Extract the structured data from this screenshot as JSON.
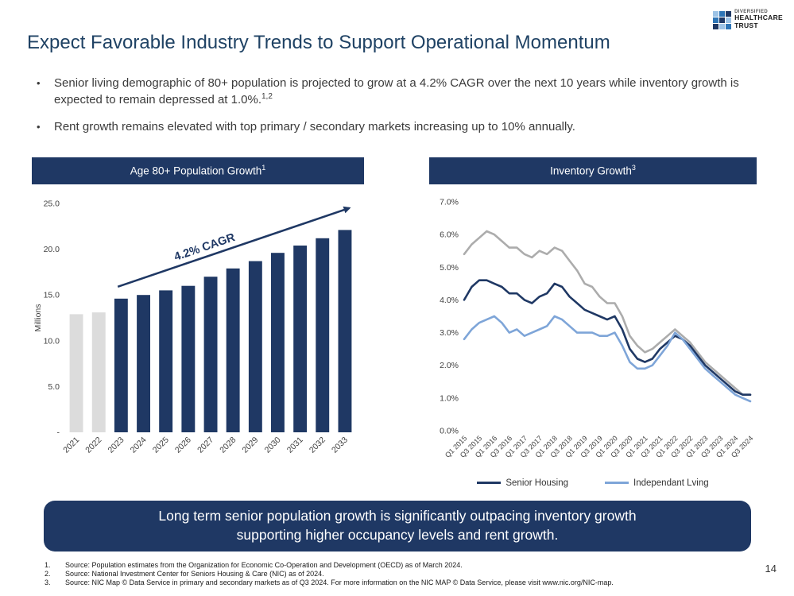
{
  "logo": {
    "line1": "DIVERSIFIED",
    "line2": "HEALTHCARE",
    "line3": "TRUST"
  },
  "title": "Expect Favorable Industry Trends to Support Operational Momentum",
  "bullets": [
    {
      "text": "Senior living demographic of 80+ population is projected to grow at a 4.2% CAGR over the next 10 years while inventory growth is expected to remain depressed at 1.0%.",
      "sup": "1,2"
    },
    {
      "text": "Rent growth remains elevated with top primary / secondary markets increasing up to 10% annually.",
      "sup": ""
    }
  ],
  "charts": {
    "population": {
      "header": "Age 80+ Population Growth",
      "header_sup": "1"
    },
    "inventory": {
      "header": "Inventory Growth",
      "header_sup": "3"
    }
  },
  "chart_data": [
    {
      "type": "bar",
      "title": "Age 80+ Population Growth",
      "title_sup": "1",
      "ylabel": "Millions",
      "ylim": [
        0,
        25
      ],
      "ytick_values": [
        0,
        5,
        10,
        15,
        20,
        25
      ],
      "ytick_labels": [
        "-",
        "5.0",
        "10.0",
        "15.0",
        "20.0",
        "25.0"
      ],
      "categories": [
        "2021",
        "2022",
        "2023",
        "2024",
        "2025",
        "2026",
        "2027",
        "2028",
        "2029",
        "2030",
        "2031",
        "2032",
        "2033"
      ],
      "values": [
        12.9,
        13.1,
        14.6,
        15.0,
        15.5,
        16.0,
        17.0,
        17.9,
        18.7,
        19.6,
        20.4,
        21.2,
        22.1
      ],
      "muted_count": 2,
      "bar_color": "#1F3864",
      "muted_color": "#DCDCDC",
      "annotation": {
        "text": "4.2% CAGR",
        "from_category": "2023",
        "to_category": "2033"
      }
    },
    {
      "type": "line",
      "title": "Inventory Growth",
      "title_sup": "3",
      "ylim": [
        0,
        7
      ],
      "ytick_values": [
        0,
        1,
        2,
        3,
        4,
        5,
        6,
        7
      ],
      "ytick_labels": [
        "0.0%",
        "1.0%",
        "2.0%",
        "3.0%",
        "4.0%",
        "5.0%",
        "6.0%",
        "7.0%"
      ],
      "x_labels": [
        "Q1 2015",
        "Q3 2015",
        "Q1 2016",
        "Q3 2016",
        "Q1 2017",
        "Q3 2017",
        "Q1 2018",
        "Q3 2018",
        "Q1 2019",
        "Q3 2019",
        "Q1 2020",
        "Q3 2020",
        "Q1 2021",
        "Q3 2021",
        "Q1 2022",
        "Q3 2022",
        "Q1 2023",
        "Q3 2023",
        "Q1 2024",
        "Q3 2024"
      ],
      "x_label_every": 2,
      "series": [
        {
          "name": "",
          "color": "#ACACAC",
          "in_legend": false,
          "values": [
            5.4,
            5.7,
            5.9,
            6.1,
            6.0,
            5.8,
            5.6,
            5.6,
            5.4,
            5.3,
            5.5,
            5.4,
            5.6,
            5.5,
            5.2,
            4.9,
            4.5,
            4.4,
            4.1,
            3.9,
            3.9,
            3.5,
            2.9,
            2.6,
            2.4,
            2.5,
            2.7,
            2.9,
            3.1,
            2.9,
            2.7,
            2.4,
            2.1,
            1.9,
            1.7,
            1.5,
            1.3,
            1.1,
            1.1
          ]
        },
        {
          "name": "Senior Housing",
          "color": "#1F3864",
          "in_legend": true,
          "values": [
            4.0,
            4.4,
            4.6,
            4.6,
            4.5,
            4.4,
            4.2,
            4.2,
            4.0,
            3.9,
            4.1,
            4.2,
            4.5,
            4.4,
            4.1,
            3.9,
            3.7,
            3.6,
            3.5,
            3.4,
            3.5,
            3.1,
            2.5,
            2.2,
            2.1,
            2.2,
            2.5,
            2.7,
            2.9,
            2.8,
            2.6,
            2.3,
            2.0,
            1.8,
            1.6,
            1.4,
            1.2,
            1.1,
            1.1
          ]
        },
        {
          "name": "Independant Lving",
          "color": "#7EA5D8",
          "in_legend": true,
          "values": [
            2.8,
            3.1,
            3.3,
            3.4,
            3.5,
            3.3,
            3.0,
            3.1,
            2.9,
            3.0,
            3.1,
            3.2,
            3.5,
            3.4,
            3.2,
            3.0,
            3.0,
            3.0,
            2.9,
            2.9,
            3.0,
            2.6,
            2.1,
            1.9,
            1.9,
            2.0,
            2.3,
            2.6,
            3.0,
            2.8,
            2.5,
            2.2,
            1.9,
            1.7,
            1.5,
            1.3,
            1.1,
            1.0,
            0.9
          ]
        }
      ]
    }
  ],
  "banner": {
    "line1": "Long term senior population growth is significantly outpacing inventory growth",
    "line2": "supporting higher occupancy levels and rent growth."
  },
  "footnotes": [
    {
      "num": "1.",
      "text": "Source: Population estimates from the Organization for Economic Co-Operation and Development (OECD) as of March 2024."
    },
    {
      "num": "2.",
      "text": "Source: National Investment Center for Seniors Housing & Care (NIC) as of 2024."
    },
    {
      "num": "3.",
      "text": "Source: NIC Map © Data Service in primary and secondary markets as of Q3 2024.  For more information on the NIC MAP © Data Service, please visit www.nic.org/NIC-map."
    }
  ],
  "page_number": "14"
}
